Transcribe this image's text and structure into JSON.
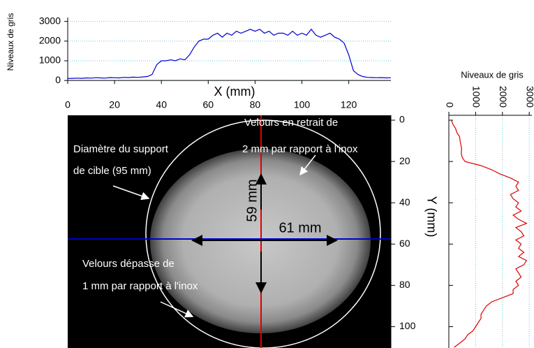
{
  "chart_data": [
    {
      "type": "line",
      "y_label": "Niveaux de gris",
      "x_label": "X (mm)",
      "xlim": [
        0,
        138
      ],
      "ylim": [
        -100,
        3200
      ],
      "xticks": [
        0,
        20,
        40,
        60,
        80,
        100,
        120
      ],
      "yticks": [
        0,
        1000,
        2000,
        3000
      ],
      "grid": true,
      "color": "#0000cc",
      "x": [
        0,
        2,
        4,
        6,
        8,
        10,
        12,
        14,
        16,
        18,
        20,
        22,
        24,
        26,
        28,
        30,
        32,
        34,
        36,
        38,
        40,
        42,
        44,
        46,
        48,
        50,
        52,
        54,
        56,
        58,
        60,
        62,
        64,
        66,
        68,
        70,
        72,
        74,
        76,
        78,
        80,
        82,
        84,
        86,
        88,
        90,
        92,
        94,
        96,
        98,
        100,
        102,
        104,
        106,
        108,
        110,
        112,
        114,
        116,
        118,
        120,
        122,
        124,
        126,
        128,
        130,
        132,
        134,
        136,
        138
      ],
      "values": [
        100,
        110,
        120,
        110,
        130,
        120,
        140,
        130,
        120,
        150,
        140,
        130,
        160,
        150,
        170,
        160,
        180,
        200,
        300,
        800,
        1000,
        1000,
        1050,
        1000,
        1100,
        1050,
        1300,
        1700,
        2000,
        2100,
        2100,
        2300,
        2400,
        2200,
        2400,
        2300,
        2500,
        2400,
        2500,
        2600,
        2500,
        2600,
        2400,
        2500,
        2300,
        2400,
        2400,
        2300,
        2500,
        2300,
        2400,
        2300,
        2600,
        2300,
        2200,
        2300,
        2400,
        2200,
        2100,
        1900,
        1300,
        500,
        300,
        200,
        160,
        150,
        140,
        150,
        130,
        140
      ]
    },
    {
      "type": "line",
      "x_label": "Niveaux de gris",
      "y_label": "Y (mm)",
      "xlim": [
        0,
        3100
      ],
      "ylim": [
        0,
        110
      ],
      "xticks": [
        0,
        1000,
        2000,
        3000
      ],
      "yticks": [
        0,
        20,
        40,
        60,
        80,
        100
      ],
      "grid": true,
      "color": "#dd0000",
      "x": [
        0,
        2,
        4,
        6,
        8,
        10,
        12,
        14,
        16,
        18,
        20,
        22,
        24,
        26,
        28,
        30,
        32,
        34,
        36,
        38,
        40,
        42,
        44,
        46,
        48,
        50,
        52,
        54,
        56,
        58,
        60,
        62,
        64,
        66,
        68,
        70,
        72,
        74,
        76,
        78,
        80,
        82,
        84,
        86,
        88,
        90,
        92,
        94,
        96,
        98,
        100,
        102,
        104,
        106,
        108,
        110
      ],
      "values": [
        100,
        150,
        250,
        300,
        400,
        420,
        450,
        480,
        460,
        500,
        600,
        1200,
        1600,
        1900,
        2300,
        2600,
        2500,
        2600,
        2300,
        2400,
        2600,
        2500,
        2700,
        2400,
        2600,
        2900,
        2500,
        2700,
        2800,
        2500,
        2700,
        2600,
        2800,
        2600,
        2900,
        2800,
        2500,
        2600,
        2700,
        2500,
        2600,
        2400,
        2400,
        2000,
        1600,
        1400,
        1300,
        1200,
        1200,
        1100,
        1000,
        900,
        700,
        600,
        400,
        200
      ]
    }
  ],
  "image": {
    "annotations": [
      "Velours en retrait de",
      "2 mm par rapport à l'inox",
      "Diamètre du support",
      "de cible (95 mm)",
      "Velours dépasse de",
      "1 mm par rapport à l'inox"
    ],
    "dimensions": [
      "59 mm",
      "61 mm"
    ]
  }
}
